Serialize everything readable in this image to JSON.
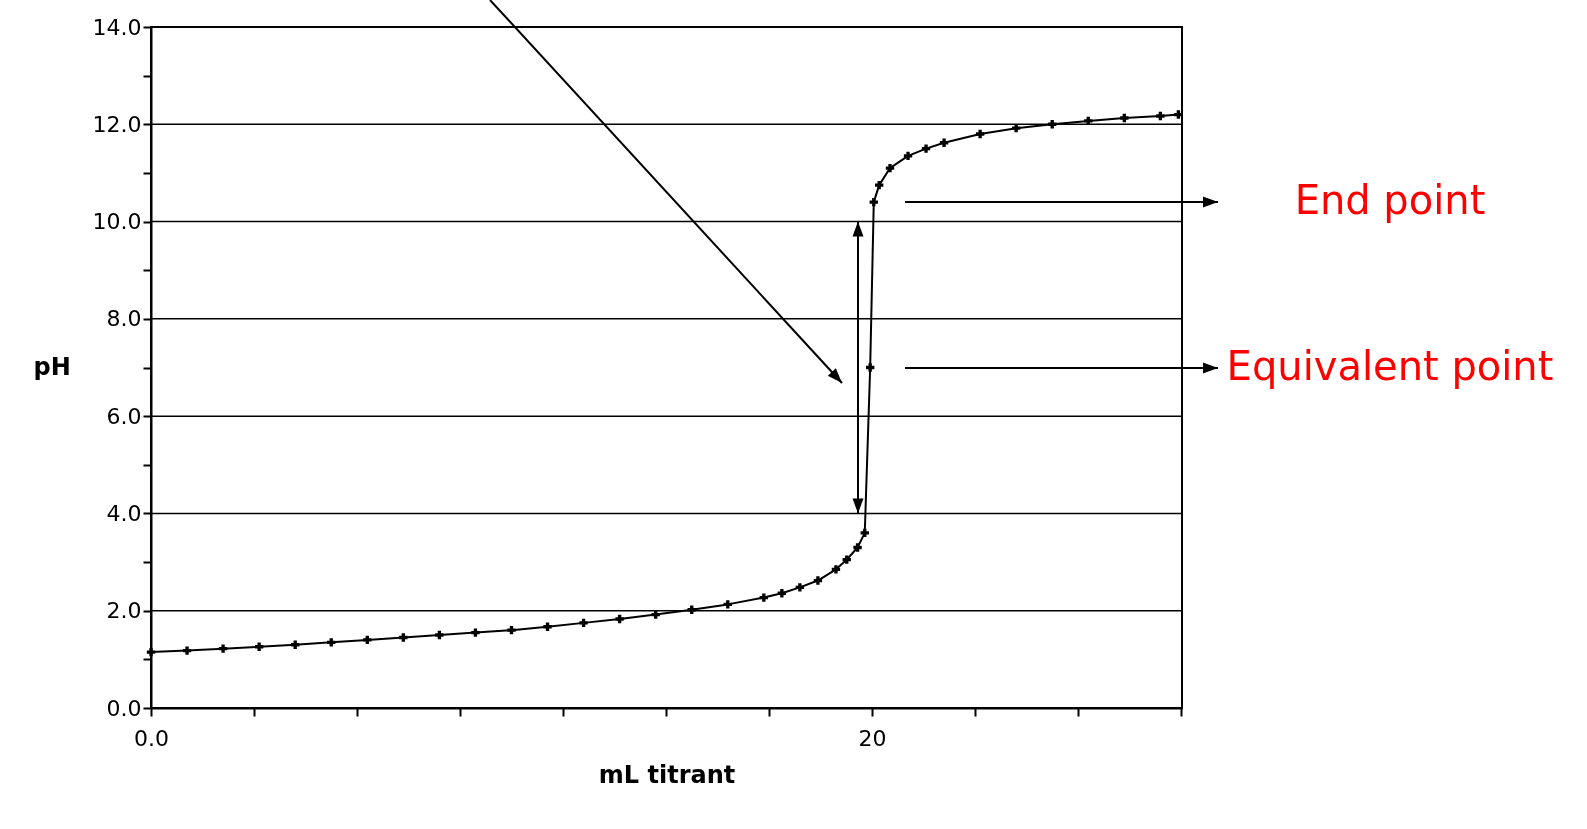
{
  "chart_data": {
    "type": "line",
    "xlabel": "mL titrant",
    "ylabel": "pH",
    "x": [
      0,
      1,
      2,
      3,
      4,
      5,
      6,
      7,
      8,
      9,
      10,
      11,
      12,
      13,
      14,
      15,
      16,
      17,
      17.5,
      18,
      18.5,
      19,
      19.3,
      19.6,
      19.8,
      19.95,
      20.05,
      20.2,
      20.5,
      21,
      21.5,
      22,
      23,
      24,
      25,
      26,
      27,
      28,
      28.5
    ],
    "series": [
      {
        "color": "#000000",
        "values": [
          1.15,
          1.18,
          1.22,
          1.26,
          1.3,
          1.35,
          1.4,
          1.45,
          1.5,
          1.55,
          1.6,
          1.67,
          1.75,
          1.83,
          1.92,
          2.02,
          2.13,
          2.27,
          2.36,
          2.48,
          2.62,
          2.85,
          3.05,
          3.3,
          3.6,
          7.0,
          10.4,
          10.75,
          11.1,
          11.35,
          11.5,
          11.62,
          11.8,
          11.92,
          12.0,
          12.07,
          12.13,
          12.17,
          12.2
        ]
      }
    ],
    "xlim": [
      0,
      28.6
    ],
    "xticks": [
      {
        "value": 0,
        "label": "0.0"
      },
      {
        "value": 2.86,
        "label": null
      },
      {
        "value": 5.71,
        "label": null
      },
      {
        "value": 8.57,
        "label": null
      },
      {
        "value": 11.43,
        "label": null
      },
      {
        "value": 14.29,
        "label": null
      },
      {
        "value": 17.14,
        "label": null
      },
      {
        "value": 20,
        "label": "20"
      },
      {
        "value": 22.86,
        "label": null
      },
      {
        "value": 25.71,
        "label": null
      },
      {
        "value": 28.57,
        "label": null
      }
    ],
    "ylim": [
      0,
      14
    ],
    "yticks": [
      {
        "value": 0,
        "label": "0.0"
      },
      {
        "value": 1,
        "label": null
      },
      {
        "value": 2,
        "label": "2.0"
      },
      {
        "value": 3,
        "label": null
      },
      {
        "value": 4,
        "label": "4.0"
      },
      {
        "value": 5,
        "label": null
      },
      {
        "value": 6,
        "label": "6.0"
      },
      {
        "value": 7,
        "label": null
      },
      {
        "value": 8,
        "label": "8.0"
      },
      {
        "value": 9,
        "label": null
      },
      {
        "value": 10,
        "label": "10.0"
      },
      {
        "value": 11,
        "label": null
      },
      {
        "value": 12,
        "label": "12.0"
      },
      {
        "value": 13,
        "label": null
      },
      {
        "value": 14,
        "label": "14.0"
      }
    ],
    "grid": "y",
    "marker": "cross",
    "line_style": "solid",
    "annotations": [
      "End point",
      "Equivalent point"
    ]
  }
}
